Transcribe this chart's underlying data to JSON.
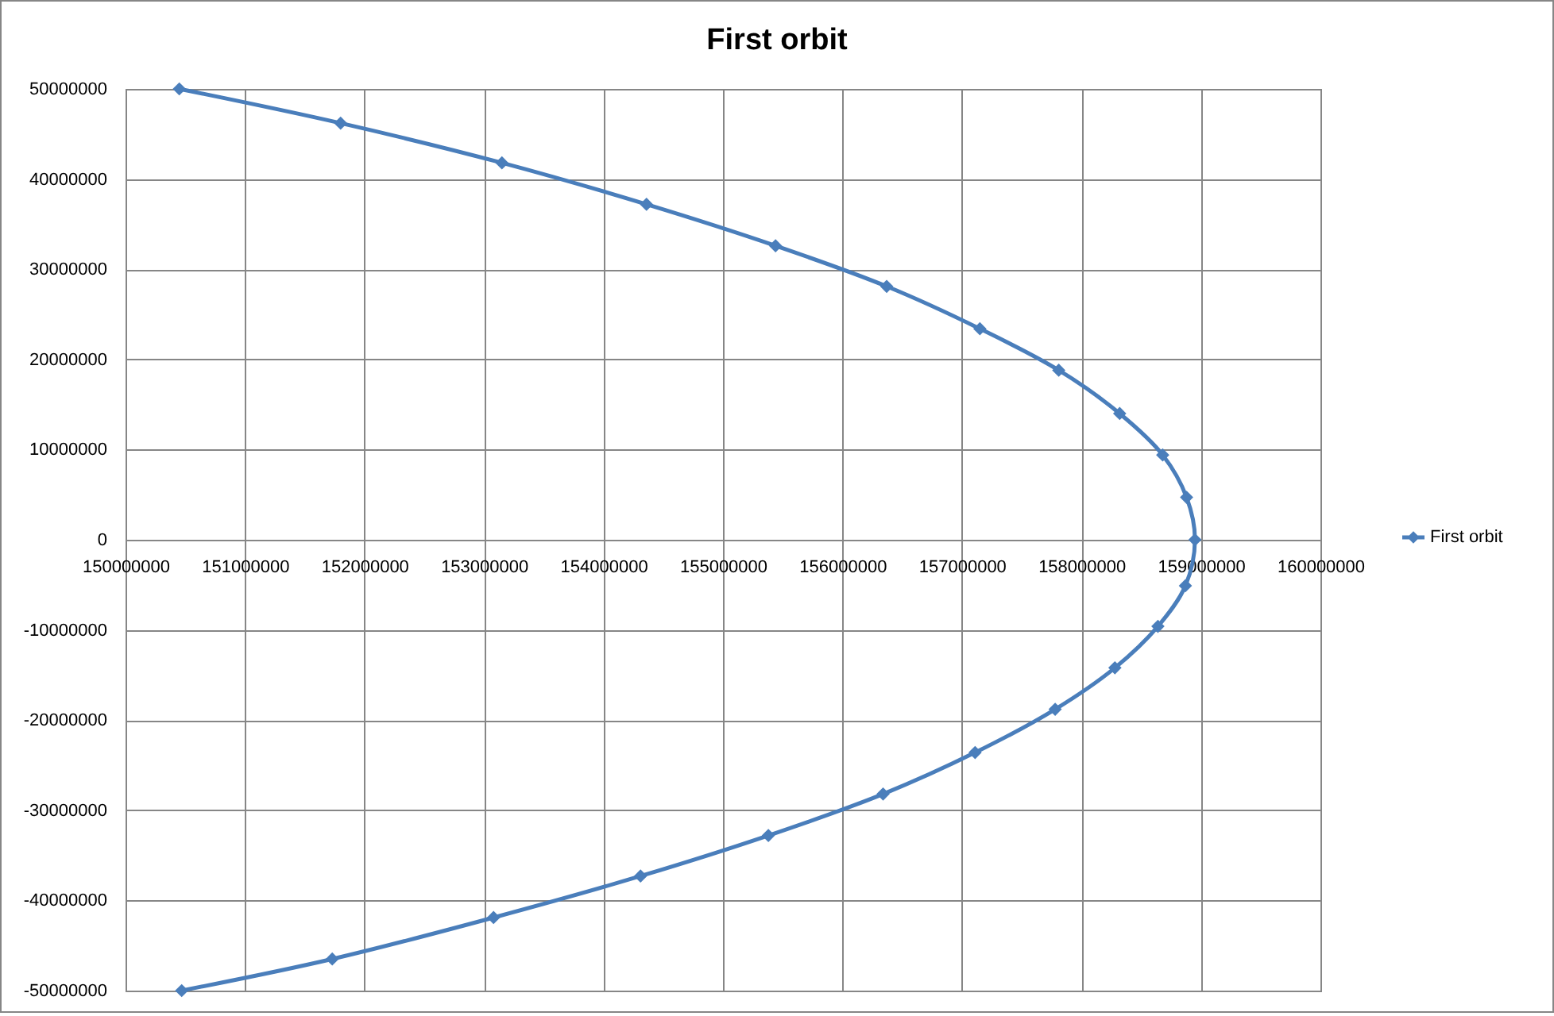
{
  "chart_data": {
    "type": "line",
    "title": "First orbit",
    "series": [
      {
        "name": "First orbit",
        "color": "#4a7ebb",
        "x": [
          150450000,
          151800000,
          153150000,
          154360000,
          155440000,
          156370000,
          157150000,
          157810000,
          158320000,
          158680000,
          158880000,
          158950000,
          158870000,
          158640000,
          158280000,
          157780000,
          157110000,
          156340000,
          155380000,
          154310000,
          153080000,
          151730000,
          150470000
        ],
        "values": [
          50000000,
          46200000,
          41800000,
          37200000,
          32600000,
          28100000,
          23400000,
          18800000,
          14000000,
          9400000,
          4700000,
          0,
          -5100000,
          -9600000,
          -14200000,
          -18800000,
          -23600000,
          -28200000,
          -32800000,
          -37300000,
          -41900000,
          -46500000,
          -50000000
        ]
      }
    ],
    "xlim": [
      150000000,
      160000000
    ],
    "xticks": [
      150000000,
      151000000,
      152000000,
      153000000,
      154000000,
      155000000,
      156000000,
      157000000,
      158000000,
      159000000,
      160000000
    ],
    "ylim": [
      -50000000,
      50000000
    ],
    "yticks": [
      -50000000,
      -40000000,
      -30000000,
      -20000000,
      -10000000,
      0,
      10000000,
      20000000,
      30000000,
      40000000,
      50000000
    ],
    "grid": true,
    "legend": "right",
    "marker": "diamond",
    "line_style": "solid"
  }
}
